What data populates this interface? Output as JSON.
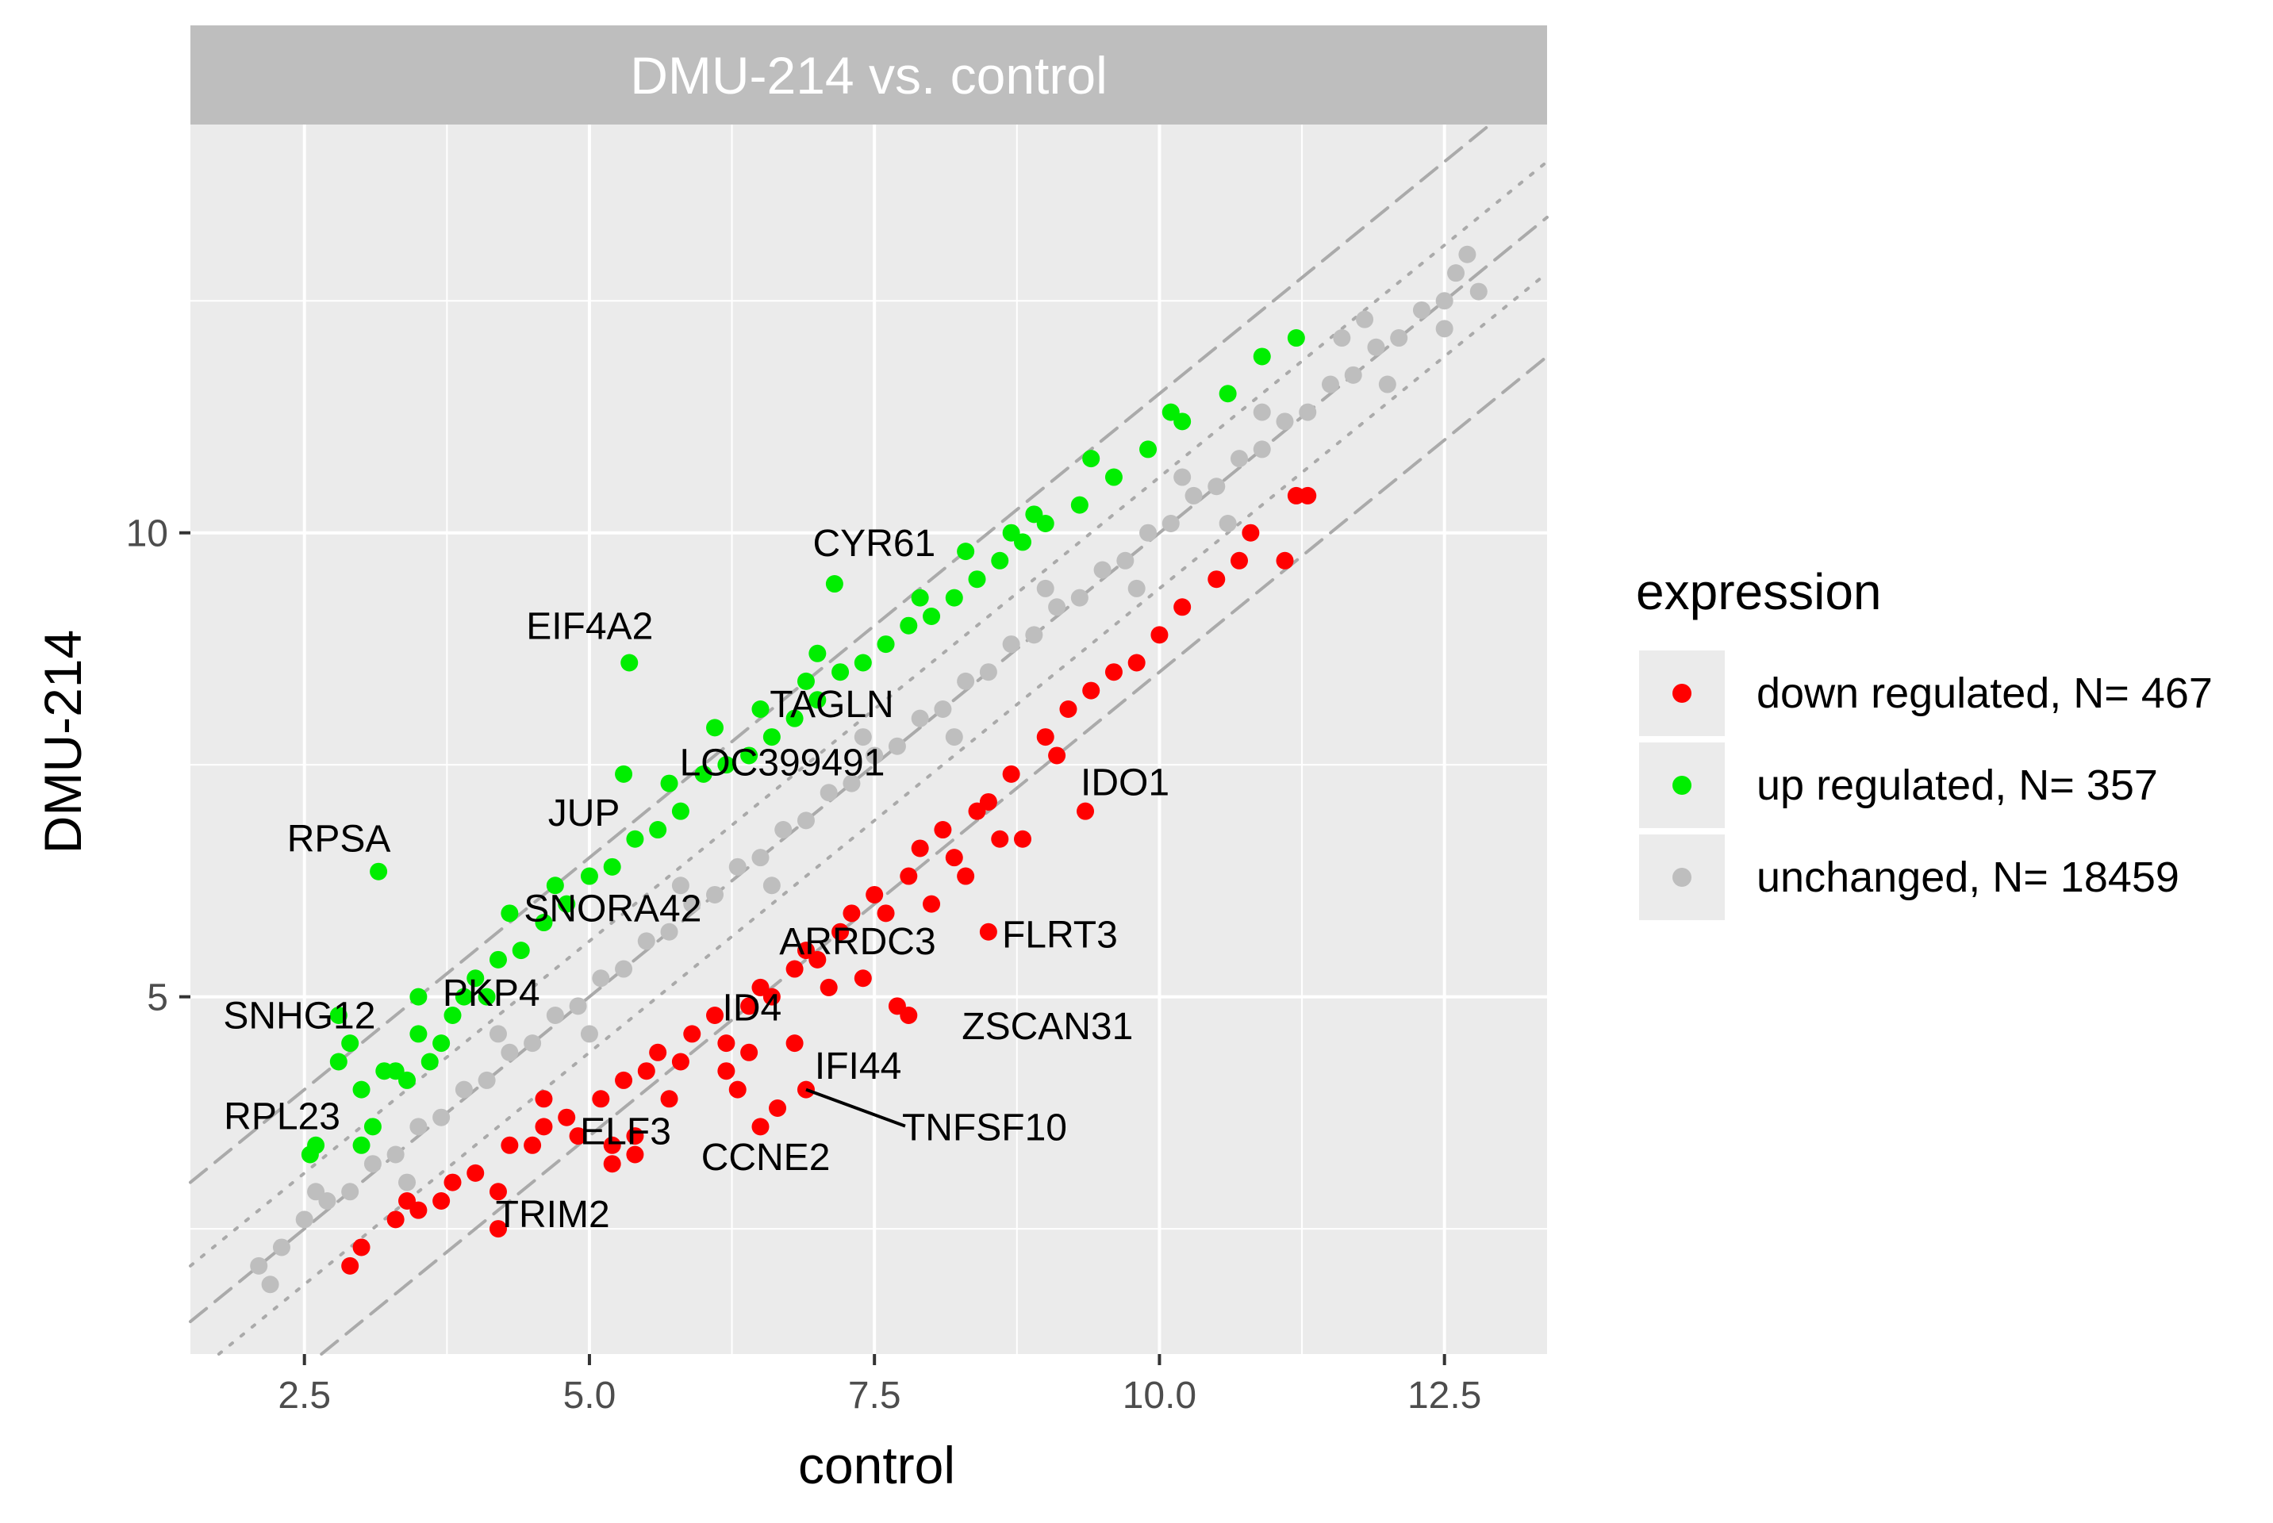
{
  "chart_data": {
    "type": "scatter",
    "facet_title": "DMU-214 vs. control",
    "xlabel": "control",
    "ylabel": "DMU-214",
    "xlim": [
      1.5,
      13.4
    ],
    "ylim": [
      1.15,
      14.4
    ],
    "x_ticks": [
      2.5,
      5.0,
      7.5,
      10.0,
      12.5
    ],
    "x_tick_labels": [
      "2.5",
      "5.0",
      "7.5",
      "10.0",
      "12.5"
    ],
    "y_ticks": [
      5,
      10
    ],
    "y_tick_labels": [
      "5",
      "10"
    ],
    "reference_lines": [
      {
        "style": "dashed",
        "intercept": 0,
        "slope": 1
      },
      {
        "style": "dashed",
        "intercept": 1.5,
        "slope": 1
      },
      {
        "style": "dashed",
        "intercept": -1.5,
        "slope": 1
      },
      {
        "style": "dotted",
        "intercept": 0.6,
        "slope": 1
      },
      {
        "style": "dotted",
        "intercept": -0.6,
        "slope": 1
      }
    ],
    "legend": {
      "title": "expression",
      "position": "right",
      "entries": [
        {
          "key": "down",
          "label": "down regulated, N= 467",
          "color": "#ff0000"
        },
        {
          "key": "up",
          "label": "up regulated, N= 357",
          "color": "#00ee00"
        },
        {
          "key": "unchanged",
          "label": "unchanged, N= 18459",
          "color": "#bebebe"
        }
      ]
    },
    "series": [
      {
        "name": "down regulated",
        "color": "#ff0000",
        "points": [
          [
            2.9,
            2.1
          ],
          [
            3.3,
            2.6
          ],
          [
            3.5,
            2.7
          ],
          [
            3.7,
            2.8
          ],
          [
            3.8,
            3.0
          ],
          [
            4.0,
            3.1
          ],
          [
            4.2,
            2.9
          ],
          [
            4.3,
            3.4
          ],
          [
            4.5,
            3.4
          ],
          [
            4.6,
            3.6
          ],
          [
            4.8,
            3.7
          ],
          [
            4.9,
            3.5
          ],
          [
            5.1,
            3.9
          ],
          [
            5.2,
            3.4
          ],
          [
            5.4,
            3.5
          ],
          [
            5.3,
            4.1
          ],
          [
            5.5,
            4.2
          ],
          [
            5.6,
            4.4
          ],
          [
            5.8,
            4.3
          ],
          [
            5.9,
            4.6
          ],
          [
            6.1,
            4.8
          ],
          [
            6.2,
            4.5
          ],
          [
            6.4,
            4.9
          ],
          [
            6.5,
            5.1
          ],
          [
            6.6,
            5.0
          ],
          [
            6.8,
            5.3
          ],
          [
            6.9,
            5.5
          ],
          [
            7.0,
            5.4
          ],
          [
            7.2,
            5.7
          ],
          [
            7.3,
            5.9
          ],
          [
            7.5,
            6.1
          ],
          [
            7.6,
            5.9
          ],
          [
            7.8,
            6.3
          ],
          [
            7.9,
            6.6
          ],
          [
            8.1,
            6.8
          ],
          [
            8.2,
            6.5
          ],
          [
            8.4,
            7.0
          ],
          [
            8.5,
            7.1
          ],
          [
            8.7,
            7.4
          ],
          [
            8.8,
            6.7
          ],
          [
            9.0,
            7.8
          ],
          [
            9.2,
            8.1
          ],
          [
            9.4,
            8.3
          ],
          [
            9.6,
            8.5
          ],
          [
            9.8,
            8.6
          ],
          [
            10.0,
            8.9
          ],
          [
            10.2,
            9.2
          ],
          [
            10.5,
            9.5
          ],
          [
            10.7,
            9.7
          ],
          [
            10.8,
            10.0
          ],
          [
            11.1,
            9.7
          ],
          [
            11.2,
            10.4
          ],
          [
            11.3,
            10.4
          ],
          [
            6.2,
            4.2
          ],
          [
            6.5,
            3.6
          ],
          [
            7.1,
            5.1
          ],
          [
            7.7,
            4.9
          ],
          [
            8.3,
            6.3
          ],
          [
            8.5,
            5.7
          ],
          [
            4.2,
            2.5
          ],
          [
            4.6,
            3.9
          ],
          [
            5.7,
            3.9
          ],
          [
            6.3,
            4.0
          ],
          [
            7.4,
            5.2
          ],
          [
            8.0,
            6.0
          ],
          [
            9.1,
            7.6
          ],
          [
            9.35,
            7.0
          ],
          [
            7.8,
            4.8
          ],
          [
            6.65,
            3.8
          ],
          [
            6.9,
            4.0
          ],
          [
            5.2,
            3.2
          ],
          [
            5.4,
            3.3
          ],
          [
            6.8,
            4.5
          ],
          [
            6.4,
            4.4
          ],
          [
            8.6,
            6.7
          ],
          [
            3.0,
            2.3
          ],
          [
            3.4,
            2.8
          ]
        ]
      },
      {
        "name": "up regulated",
        "color": "#00ee00",
        "points": [
          [
            2.6,
            3.4
          ],
          [
            2.8,
            4.3
          ],
          [
            3.0,
            4.0
          ],
          [
            3.1,
            3.6
          ],
          [
            3.2,
            4.2
          ],
          [
            3.4,
            4.1
          ],
          [
            3.5,
            4.6
          ],
          [
            3.7,
            4.5
          ],
          [
            3.9,
            5.0
          ],
          [
            4.1,
            5.0
          ],
          [
            4.2,
            5.4
          ],
          [
            4.4,
            5.5
          ],
          [
            4.6,
            5.8
          ],
          [
            4.8,
            6.0
          ],
          [
            5.0,
            6.3
          ],
          [
            5.2,
            6.4
          ],
          [
            5.4,
            6.7
          ],
          [
            5.6,
            6.8
          ],
          [
            5.8,
            7.0
          ],
          [
            6.0,
            7.4
          ],
          [
            6.2,
            7.5
          ],
          [
            6.4,
            7.6
          ],
          [
            6.6,
            7.8
          ],
          [
            6.8,
            8.0
          ],
          [
            7.0,
            8.2
          ],
          [
            7.2,
            8.5
          ],
          [
            7.4,
            8.6
          ],
          [
            7.6,
            8.8
          ],
          [
            7.8,
            9.0
          ],
          [
            8.0,
            9.1
          ],
          [
            8.2,
            9.3
          ],
          [
            8.4,
            9.5
          ],
          [
            8.6,
            9.7
          ],
          [
            8.8,
            9.9
          ],
          [
            9.0,
            10.1
          ],
          [
            9.3,
            10.3
          ],
          [
            9.6,
            10.6
          ],
          [
            9.9,
            10.9
          ],
          [
            10.2,
            11.2
          ],
          [
            10.6,
            11.5
          ],
          [
            10.9,
            11.9
          ],
          [
            11.2,
            12.1
          ],
          [
            2.55,
            3.3
          ],
          [
            2.8,
            4.8
          ],
          [
            2.9,
            4.5
          ],
          [
            3.0,
            3.4
          ],
          [
            3.15,
            6.35
          ],
          [
            3.3,
            4.2
          ],
          [
            3.5,
            5.0
          ],
          [
            4.3,
            5.9
          ],
          [
            5.3,
            7.4
          ],
          [
            5.35,
            8.6
          ],
          [
            6.1,
            7.9
          ],
          [
            6.5,
            8.1
          ],
          [
            7.15,
            9.45
          ],
          [
            7.0,
            8.7
          ],
          [
            8.3,
            9.8
          ],
          [
            8.9,
            10.2
          ],
          [
            9.4,
            10.8
          ],
          [
            10.1,
            11.3
          ],
          [
            4.0,
            5.2
          ],
          [
            3.8,
            4.8
          ],
          [
            4.7,
            6.2
          ],
          [
            5.7,
            7.3
          ],
          [
            6.9,
            8.4
          ],
          [
            7.9,
            9.3
          ],
          [
            8.7,
            10.0
          ],
          [
            3.6,
            4.3
          ]
        ]
      },
      {
        "name": "unchanged",
        "color": "#bebebe",
        "points": [
          [
            2.1,
            2.1
          ],
          [
            2.3,
            2.3
          ],
          [
            2.5,
            2.6
          ],
          [
            2.7,
            2.8
          ],
          [
            2.9,
            2.9
          ],
          [
            3.1,
            3.2
          ],
          [
            3.3,
            3.3
          ],
          [
            3.5,
            3.6
          ],
          [
            3.7,
            3.7
          ],
          [
            3.9,
            4.0
          ],
          [
            4.1,
            4.1
          ],
          [
            4.3,
            4.4
          ],
          [
            4.5,
            4.5
          ],
          [
            4.7,
            4.8
          ],
          [
            4.9,
            4.9
          ],
          [
            5.1,
            5.2
          ],
          [
            5.3,
            5.3
          ],
          [
            5.5,
            5.6
          ],
          [
            5.7,
            5.7
          ],
          [
            5.9,
            6.0
          ],
          [
            6.1,
            6.1
          ],
          [
            6.3,
            6.4
          ],
          [
            6.5,
            6.5
          ],
          [
            6.7,
            6.8
          ],
          [
            6.9,
            6.9
          ],
          [
            7.1,
            7.2
          ],
          [
            7.3,
            7.3
          ],
          [
            7.5,
            7.6
          ],
          [
            7.7,
            7.7
          ],
          [
            7.9,
            8.0
          ],
          [
            8.1,
            8.1
          ],
          [
            8.3,
            8.4
          ],
          [
            8.5,
            8.5
          ],
          [
            8.7,
            8.8
          ],
          [
            8.9,
            8.9
          ],
          [
            9.1,
            9.2
          ],
          [
            9.3,
            9.3
          ],
          [
            9.5,
            9.6
          ],
          [
            9.7,
            9.7
          ],
          [
            9.9,
            10.0
          ],
          [
            10.1,
            10.1
          ],
          [
            10.3,
            10.4
          ],
          [
            10.5,
            10.5
          ],
          [
            10.7,
            10.8
          ],
          [
            10.9,
            10.9
          ],
          [
            11.1,
            11.2
          ],
          [
            11.3,
            11.3
          ],
          [
            11.5,
            11.6
          ],
          [
            11.7,
            11.7
          ],
          [
            11.9,
            12.0
          ],
          [
            12.1,
            12.1
          ],
          [
            12.3,
            12.4
          ],
          [
            12.5,
            12.5
          ],
          [
            12.6,
            12.8
          ],
          [
            12.7,
            13.0
          ],
          [
            12.5,
            12.2
          ],
          [
            12.0,
            11.6
          ],
          [
            11.6,
            12.1
          ],
          [
            10.9,
            11.3
          ],
          [
            10.6,
            10.1
          ],
          [
            9.8,
            9.4
          ],
          [
            9.0,
            9.4
          ],
          [
            8.2,
            7.8
          ],
          [
            7.4,
            7.8
          ],
          [
            6.6,
            6.2
          ],
          [
            5.8,
            6.2
          ],
          [
            5.0,
            4.6
          ],
          [
            4.2,
            4.6
          ],
          [
            3.4,
            3.0
          ],
          [
            2.6,
            2.9
          ],
          [
            2.2,
            1.9
          ],
          [
            12.8,
            12.6
          ],
          [
            11.8,
            12.3
          ],
          [
            10.2,
            10.6
          ]
        ]
      }
    ],
    "annotations": [
      {
        "label": "CYR61",
        "x": 7.15,
        "y": 9.45
      },
      {
        "label": "EIF4A2",
        "x": 5.35,
        "y": 8.6
      },
      {
        "label": "TAGLN",
        "x": 6.5,
        "y": 8.1
      },
      {
        "label": "LOC399491",
        "x": 6.1,
        "y": 7.9
      },
      {
        "label": "JUP",
        "x": 5.3,
        "y": 7.4
      },
      {
        "label": "RPSA",
        "x": 3.15,
        "y": 6.35
      },
      {
        "label": "SNORA42",
        "x": 4.3,
        "y": 5.9
      },
      {
        "label": "PKP4",
        "x": 4.0,
        "y": 5.2
      },
      {
        "label": "SNHG12",
        "x": 3.5,
        "y": 5.0
      },
      {
        "label": "RPL23",
        "x": 3.0,
        "y": 4.0
      },
      {
        "label": "ARRDC3",
        "x": 6.9,
        "y": 5.5
      },
      {
        "label": "ID4",
        "x": 6.6,
        "y": 5.0
      },
      {
        "label": "ELF3",
        "x": 5.7,
        "y": 3.9
      },
      {
        "label": "IFI44",
        "x": 6.8,
        "y": 4.5
      },
      {
        "label": "TNFSF10",
        "x": 6.9,
        "y": 4.0
      },
      {
        "label": "CCNE2",
        "x": 6.65,
        "y": 3.8
      },
      {
        "label": "TRIM2",
        "x": 5.2,
        "y": 3.2
      },
      {
        "label": "IDO1",
        "x": 9.35,
        "y": 7.0
      },
      {
        "label": "FLRT3",
        "x": 8.5,
        "y": 5.7
      },
      {
        "label": "ZSCAN31",
        "x": 7.8,
        "y": 4.8
      }
    ]
  }
}
